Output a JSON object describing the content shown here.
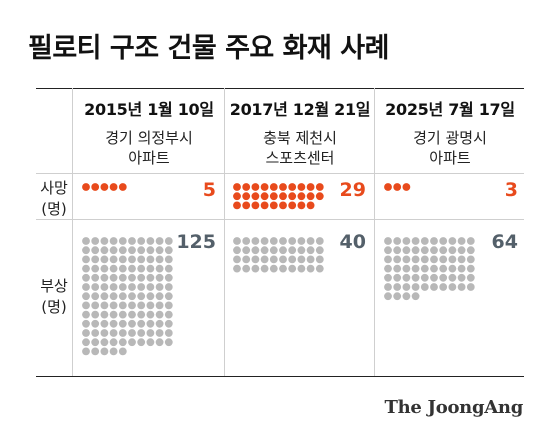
{
  "title": "필로티 구조 건물 주요 화재 사례",
  "colors": {
    "deaths": "#e84a1c",
    "injuries": "#b8b8b8",
    "injuries_number": "#54606a"
  },
  "row_labels": {
    "deaths": [
      "사망",
      "(명)"
    ],
    "injuries": [
      "부상",
      "(명)"
    ]
  },
  "chart_data": {
    "type": "table",
    "title": "필로티 구조 건물 주요 화재 사례",
    "columns": [
      "date",
      "location",
      "deaths",
      "injuries"
    ],
    "rows": [
      {
        "date": "2015년 1월 10일",
        "location": [
          "경기 의정부시",
          "아파트"
        ],
        "deaths": 5,
        "injuries": 125
      },
      {
        "date": "2017년 12월 21일",
        "location": [
          "충북 제천시",
          "스포츠센터"
        ],
        "deaths": 29,
        "injuries": 40
      },
      {
        "date": "2025년 7월 17일",
        "location": [
          "경기 광명시",
          "아파트"
        ],
        "deaths": 3,
        "injuries": 64
      }
    ]
  },
  "source": "The JoongAng"
}
